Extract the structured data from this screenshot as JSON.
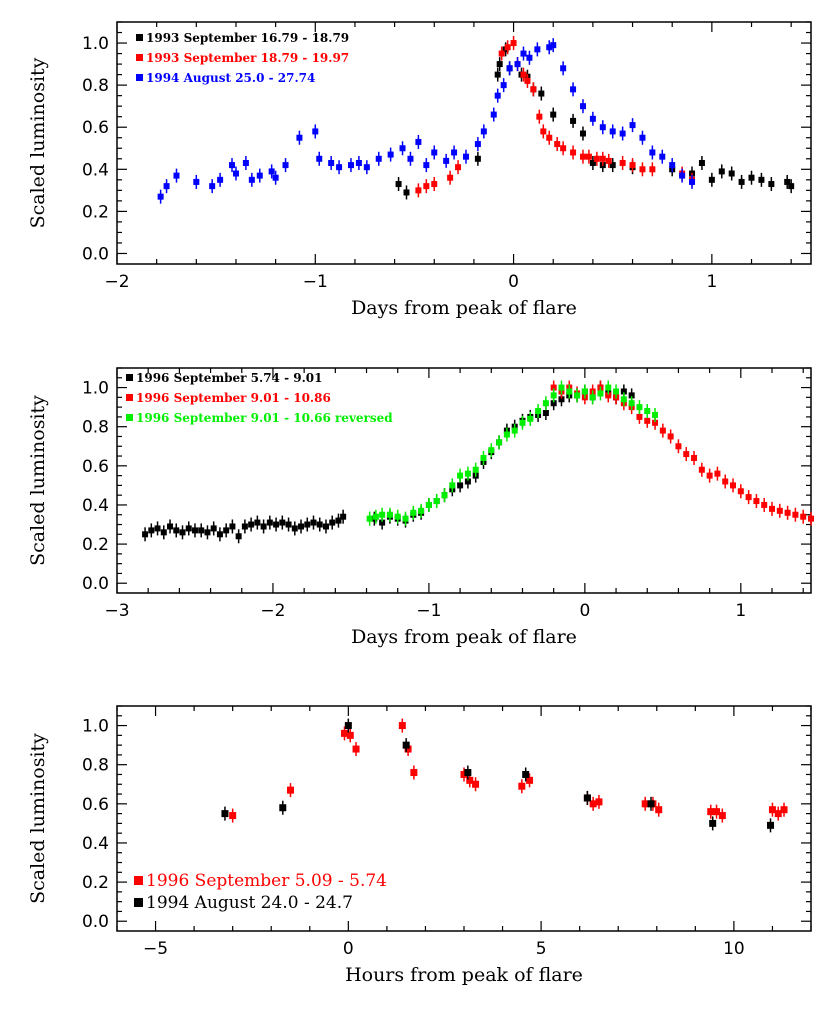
{
  "chart_data": [
    {
      "type": "scatter",
      "xlabel": "Days from peak of flare",
      "ylabel": "Scaled luminosity",
      "xlim": [
        -2,
        1.5
      ],
      "ylim": [
        -0.05,
        1.1
      ],
      "xticks": [
        -2,
        -1,
        0,
        1
      ],
      "xtick_labels": [
        "−2",
        "−1",
        "0",
        "1"
      ],
      "yticks": [
        0.0,
        0.2,
        0.4,
        0.6,
        0.8,
        1.0
      ],
      "ytick_labels": [
        "0.0",
        "0.2",
        "0.4",
        "0.6",
        "0.8",
        "1.0"
      ],
      "legend_position": "top-left",
      "series": [
        {
          "name": "1993 September 16.79 - 18.79",
          "color": "#000000",
          "x": [
            -0.58,
            -0.54,
            -0.18,
            -0.08,
            -0.07,
            -0.04,
            -0.02,
            0.04,
            0.07,
            0.1,
            0.14,
            0.2,
            0.3,
            0.35,
            0.4,
            0.45,
            0.5,
            0.6,
            0.8,
            0.9,
            0.95,
            1.0,
            1.05,
            1.1,
            1.15,
            1.2,
            1.25,
            1.3,
            1.38,
            1.4
          ],
          "y": [
            0.33,
            0.29,
            0.45,
            0.85,
            0.9,
            0.97,
            0.88,
            0.85,
            0.84,
            0.78,
            0.76,
            0.66,
            0.63,
            0.57,
            0.43,
            0.42,
            0.42,
            0.41,
            0.4,
            0.38,
            0.43,
            0.35,
            0.39,
            0.38,
            0.34,
            0.36,
            0.35,
            0.33,
            0.34,
            0.32
          ]
        },
        {
          "name": "1993 September 18.79 - 19.97",
          "color": "#ff0000",
          "x": [
            -0.48,
            -0.44,
            -0.4,
            -0.32,
            -0.28,
            -0.06,
            -0.03,
            0.0,
            0.02,
            0.05,
            0.07,
            0.1,
            0.13,
            0.15,
            0.18,
            0.22,
            0.25,
            0.3,
            0.35,
            0.38,
            0.42,
            0.45,
            0.48,
            0.55,
            0.6,
            0.65,
            0.7,
            0.85,
            0.9
          ],
          "y": [
            0.3,
            0.32,
            0.33,
            0.36,
            0.41,
            0.95,
            0.98,
            1.0,
            0.9,
            0.85,
            0.82,
            0.78,
            0.65,
            0.58,
            0.55,
            0.52,
            0.5,
            0.48,
            0.46,
            0.46,
            0.45,
            0.45,
            0.44,
            0.43,
            0.42,
            0.4,
            0.4,
            0.38,
            0.35
          ]
        },
        {
          "name": "1994 August 25.0 - 27.74",
          "color": "#0000ff",
          "x": [
            -1.78,
            -1.75,
            -1.7,
            -1.6,
            -1.52,
            -1.48,
            -1.42,
            -1.4,
            -1.35,
            -1.32,
            -1.28,
            -1.22,
            -1.2,
            -1.15,
            -1.08,
            -1.0,
            -0.98,
            -0.92,
            -0.88,
            -0.82,
            -0.78,
            -0.74,
            -0.68,
            -0.62,
            -0.56,
            -0.52,
            -0.48,
            -0.44,
            -0.4,
            -0.34,
            -0.3,
            -0.24,
            -0.18,
            -0.15,
            -0.1,
            -0.08,
            -0.05,
            -0.02,
            0.02,
            0.05,
            0.08,
            0.12,
            0.18,
            0.2,
            0.25,
            0.3,
            0.35,
            0.4,
            0.45,
            0.5,
            0.55,
            0.6,
            0.65,
            0.7,
            0.75,
            0.8,
            0.85,
            0.9
          ],
          "y": [
            0.27,
            0.32,
            0.37,
            0.34,
            0.32,
            0.35,
            0.42,
            0.38,
            0.43,
            0.35,
            0.37,
            0.39,
            0.36,
            0.42,
            0.55,
            0.58,
            0.45,
            0.43,
            0.41,
            0.42,
            0.43,
            0.41,
            0.45,
            0.47,
            0.5,
            0.45,
            0.53,
            0.42,
            0.48,
            0.44,
            0.48,
            0.46,
            0.52,
            0.58,
            0.66,
            0.75,
            0.8,
            0.88,
            0.9,
            0.95,
            0.93,
            0.97,
            0.98,
            0.99,
            0.88,
            0.78,
            0.7,
            0.64,
            0.6,
            0.58,
            0.57,
            0.61,
            0.55,
            0.48,
            0.46,
            0.42,
            0.37,
            0.34
          ]
        }
      ]
    },
    {
      "type": "scatter",
      "xlabel": "Days from peak of flare",
      "ylabel": "Scaled luminosity",
      "xlim": [
        -3,
        1.45
      ],
      "ylim": [
        -0.05,
        1.1
      ],
      "xticks": [
        -3,
        -2,
        -1,
        0,
        1
      ],
      "xtick_labels": [
        "−3",
        "−2",
        "−1",
        "0",
        "1"
      ],
      "yticks": [
        0.0,
        0.2,
        0.4,
        0.6,
        0.8,
        1.0
      ],
      "ytick_labels": [
        "0.0",
        "0.2",
        "0.4",
        "0.6",
        "0.8",
        "1.0"
      ],
      "legend_position": "top-left",
      "series": [
        {
          "name": "1996 September 5.74 - 9.01",
          "color": "#000000",
          "x": [
            -2.82,
            -2.78,
            -2.74,
            -2.7,
            -2.66,
            -2.62,
            -2.58,
            -2.54,
            -2.5,
            -2.46,
            -2.42,
            -2.38,
            -2.34,
            -2.3,
            -2.26,
            -2.22,
            -2.18,
            -2.14,
            -2.1,
            -2.06,
            -2.02,
            -1.98,
            -1.94,
            -1.9,
            -1.86,
            -1.82,
            -1.78,
            -1.74,
            -1.7,
            -1.66,
            -1.62,
            -1.58,
            -1.55,
            -1.35,
            -1.3,
            -1.25,
            -1.2,
            -1.15,
            -1.1,
            -1.05,
            -1.0,
            -0.95,
            -0.9,
            -0.85,
            -0.8,
            -0.75,
            -0.7,
            -0.65,
            -0.6,
            -0.55,
            -0.5,
            -0.45,
            -0.4,
            -0.35,
            -0.3,
            -0.25,
            -0.2,
            -0.15,
            -0.1,
            -0.05,
            0.0,
            0.05,
            0.1,
            0.15,
            0.2,
            0.25,
            0.3
          ],
          "y": [
            0.25,
            0.27,
            0.28,
            0.26,
            0.29,
            0.27,
            0.26,
            0.28,
            0.27,
            0.27,
            0.26,
            0.28,
            0.25,
            0.27,
            0.29,
            0.24,
            0.29,
            0.3,
            0.31,
            0.29,
            0.31,
            0.3,
            0.31,
            0.3,
            0.28,
            0.29,
            0.3,
            0.31,
            0.3,
            0.29,
            0.31,
            0.32,
            0.34,
            0.33,
            0.31,
            0.34,
            0.33,
            0.32,
            0.35,
            0.36,
            0.4,
            0.42,
            0.45,
            0.48,
            0.5,
            0.52,
            0.55,
            0.62,
            0.67,
            0.72,
            0.78,
            0.8,
            0.83,
            0.85,
            0.86,
            0.87,
            0.92,
            0.94,
            0.96,
            0.96,
            0.98,
            0.95,
            1.0,
            0.97,
            0.95,
            0.98,
            0.96
          ]
        },
        {
          "name": "1996 September 9.01 - 10.86",
          "color": "#ff0000",
          "x": [
            -0.2,
            -0.15,
            -0.1,
            -0.05,
            0.0,
            0.05,
            0.1,
            0.15,
            0.2,
            0.25,
            0.3,
            0.35,
            0.4,
            0.45,
            0.5,
            0.55,
            0.6,
            0.65,
            0.7,
            0.75,
            0.8,
            0.85,
            0.9,
            0.95,
            1.0,
            1.05,
            1.1,
            1.15,
            1.2,
            1.25,
            1.3,
            1.35,
            1.4,
            1.45
          ],
          "y": [
            1.0,
            0.98,
            1.0,
            0.97,
            0.95,
            0.98,
            1.0,
            0.96,
            0.95,
            0.92,
            0.9,
            0.85,
            0.83,
            0.82,
            0.78,
            0.75,
            0.7,
            0.66,
            0.64,
            0.58,
            0.55,
            0.56,
            0.52,
            0.5,
            0.47,
            0.44,
            0.42,
            0.4,
            0.38,
            0.37,
            0.36,
            0.35,
            0.34,
            0.33
          ]
        },
        {
          "name": "1996 September 9.01 - 10.66 reversed",
          "color": "#00ee00",
          "x": [
            -1.38,
            -1.34,
            -1.3,
            -1.25,
            -1.2,
            -1.15,
            -1.1,
            -1.05,
            -1.0,
            -0.95,
            -0.9,
            -0.85,
            -0.8,
            -0.75,
            -0.7,
            -0.65,
            -0.6,
            -0.55,
            -0.5,
            -0.45,
            -0.4,
            -0.35,
            -0.3,
            -0.25,
            -0.2,
            -0.15,
            -0.1,
            -0.05,
            0.0,
            0.05,
            0.1,
            0.15,
            0.2,
            0.25,
            0.3,
            0.35,
            0.4,
            0.45
          ],
          "y": [
            0.33,
            0.34,
            0.35,
            0.35,
            0.34,
            0.33,
            0.36,
            0.37,
            0.4,
            0.42,
            0.45,
            0.5,
            0.55,
            0.56,
            0.58,
            0.64,
            0.68,
            0.72,
            0.76,
            0.78,
            0.82,
            0.84,
            0.88,
            0.92,
            0.96,
            1.0,
            0.98,
            0.96,
            0.98,
            0.95,
            0.97,
            1.0,
            0.98,
            0.94,
            0.92,
            0.9,
            0.88,
            0.86
          ]
        }
      ]
    },
    {
      "type": "scatter",
      "xlabel": "Hours from peak of flare",
      "ylabel": "Scaled luminosity",
      "xlim": [
        -6,
        12
      ],
      "ylim": [
        -0.05,
        1.1
      ],
      "xticks": [
        -5,
        0,
        5,
        10
      ],
      "xtick_labels": [
        "−5",
        "0",
        "5",
        "10"
      ],
      "yticks": [
        0.0,
        0.2,
        0.4,
        0.6,
        0.8,
        1.0
      ],
      "ytick_labels": [
        "0.0",
        "0.2",
        "0.4",
        "0.6",
        "0.8",
        "1.0"
      ],
      "legend_position": "bottom-left",
      "series": [
        {
          "name": "1996 September 5.09 - 5.74",
          "color": "#ff0000",
          "x": [
            -3.0,
            -1.5,
            -0.1,
            0.05,
            0.2,
            1.4,
            1.55,
            1.7,
            3.0,
            3.15,
            3.3,
            4.5,
            4.7,
            6.2,
            6.35,
            6.5,
            7.7,
            7.9,
            8.05,
            9.4,
            9.55,
            9.7,
            11.0,
            11.15,
            11.3
          ],
          "y": [
            0.54,
            0.67,
            0.96,
            0.95,
            0.88,
            1.0,
            0.88,
            0.76,
            0.75,
            0.72,
            0.7,
            0.69,
            0.72,
            0.63,
            0.6,
            0.61,
            0.6,
            0.6,
            0.57,
            0.56,
            0.56,
            0.54,
            0.57,
            0.55,
            0.57
          ]
        },
        {
          "name": "1994 August 24.0 - 24.7",
          "color": "#000000",
          "x": [
            -3.2,
            -1.7,
            0.0,
            1.5,
            3.1,
            4.6,
            6.2,
            7.85,
            9.45,
            10.95
          ],
          "y": [
            0.55,
            0.58,
            1.0,
            0.9,
            0.76,
            0.75,
            0.63,
            0.6,
            0.5,
            0.49
          ]
        }
      ]
    }
  ]
}
